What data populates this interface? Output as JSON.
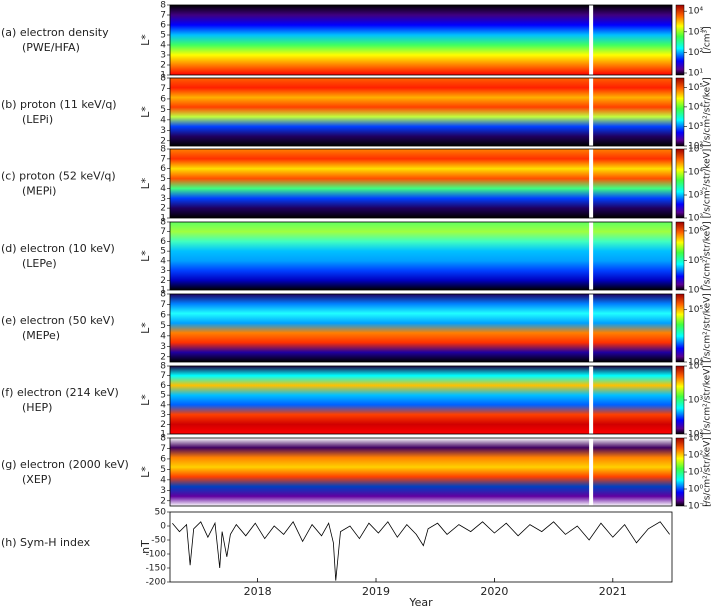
{
  "chart_data": [
    {
      "type": "spectrogram",
      "label": "(a) electron density",
      "sublabel": "(PWE/HFA)",
      "ylabel": "L*",
      "ylim": [
        1,
        8
      ],
      "yticks": [
        1,
        2,
        3,
        4,
        5,
        6,
        7,
        8
      ],
      "colormap": "jet",
      "colorbar": {
        "label": "[/cm³]",
        "lim": [
          8,
          20000
        ],
        "ticks": [
          {
            "value": 10,
            "label": "10¹"
          },
          {
            "value": 100,
            "label": "10²"
          },
          {
            "value": 1000,
            "label": "10³"
          },
          {
            "value": 10000,
            "label": "10⁴"
          }
        ]
      }
    },
    {
      "type": "spectrogram",
      "label": "(b) proton (11 keV/q)",
      "sublabel": "(LEPi)",
      "ylabel": "L*",
      "ylim": [
        1.5,
        8
      ],
      "yticks": [
        2,
        3,
        4,
        5,
        6,
        7,
        8
      ],
      "colormap": "jet",
      "colorbar": {
        "label": "[/s/cm²/str/keV]",
        "lim": [
          100,
          300000
        ],
        "ticks": [
          {
            "value": 100,
            "label": "10²"
          },
          {
            "value": 1000,
            "label": "10³"
          },
          {
            "value": 10000,
            "label": "10⁴"
          },
          {
            "value": 100000,
            "label": "10⁵"
          }
        ]
      }
    },
    {
      "type": "spectrogram",
      "label": "(c) proton (52 keV/q)",
      "sublabel": "(MEPi)",
      "ylabel": "L*",
      "ylim": [
        1,
        8
      ],
      "yticks": [
        1,
        2,
        3,
        4,
        5,
        6,
        7,
        8
      ],
      "colormap": "jet",
      "colorbar": {
        "label": "[/s/cm²/str/keV]",
        "lim": [
          100,
          100000
        ],
        "ticks": [
          {
            "value": 100,
            "label": "10²"
          },
          {
            "value": 1000,
            "label": "10³"
          },
          {
            "value": 10000,
            "label": "10⁴"
          },
          {
            "value": 100000,
            "label": "10⁵"
          }
        ]
      }
    },
    {
      "type": "spectrogram",
      "label": "(d) electron (10 keV)",
      "sublabel": "(LEPe)",
      "ylabel": "L*",
      "ylim": [
        1,
        8
      ],
      "yticks": [
        1,
        2,
        3,
        4,
        5,
        6,
        7,
        8
      ],
      "colormap": "jet",
      "colorbar": {
        "label": "[/s/cm²/str/keV]",
        "lim": [
          10000,
          2000000
        ],
        "ticks": [
          {
            "value": 10000,
            "label": "10⁴"
          },
          {
            "value": 100000,
            "label": "10⁵"
          },
          {
            "value": 1000000,
            "label": "10⁶"
          }
        ]
      }
    },
    {
      "type": "spectrogram",
      "label": "(e) electron (50 keV)",
      "sublabel": "(MEPe)",
      "ylabel": "L*",
      "ylim": [
        1.5,
        8
      ],
      "yticks": [
        2,
        3,
        4,
        5,
        6,
        7,
        8
      ],
      "colormap": "jet",
      "colorbar": {
        "label": "[/s/cm²/str/keV]",
        "lim": [
          10000,
          200000
        ],
        "ticks": [
          {
            "value": 10000,
            "label": "10⁴"
          },
          {
            "value": 100000,
            "label": "10⁵"
          }
        ]
      }
    },
    {
      "type": "spectrogram",
      "label": "(f) electron (214 keV)",
      "sublabel": "(HEP)",
      "ylabel": "L*",
      "ylim": [
        1,
        8
      ],
      "yticks": [
        1,
        2,
        3,
        4,
        5,
        6,
        7,
        8
      ],
      "colormap": "jet",
      "colorbar": {
        "label": "[/s/cm²/str/keV]",
        "lim": [
          100,
          10000
        ],
        "ticks": [
          {
            "value": 100,
            "label": "10²"
          },
          {
            "value": 1000,
            "label": "10³"
          },
          {
            "value": 10000,
            "label": "10⁴"
          }
        ]
      }
    },
    {
      "type": "spectrogram",
      "label": "(g) electron (2000 keV)",
      "sublabel": "(XEP)",
      "ylabel": "L*",
      "ylim": [
        1.5,
        8
      ],
      "yticks": [
        2,
        3,
        4,
        5,
        6,
        7,
        8
      ],
      "colormap": "jet",
      "colorbar": {
        "label": "[/s/cm²/str/keV]",
        "lim": [
          0.1,
          1000
        ],
        "ticks": [
          {
            "value": 0.1,
            "label": "10⁻¹"
          },
          {
            "value": 1,
            "label": "10⁰"
          },
          {
            "value": 10,
            "label": "10¹"
          },
          {
            "value": 100,
            "label": "10²"
          },
          {
            "value": 1000,
            "label": "10³"
          }
        ]
      }
    },
    {
      "type": "line",
      "label": "(h) Sym-H index",
      "ylabel": "nT",
      "xlabel": "Year",
      "color": "#000000",
      "xlim": [
        2017.26,
        2021.5
      ],
      "xticks": [
        2018,
        2019,
        2020,
        2021
      ],
      "ylim": [
        -200,
        50
      ],
      "yticks": [
        50,
        0,
        -50,
        -100,
        -150,
        -200
      ],
      "x": [
        2017.28,
        2017.34,
        2017.4,
        2017.43,
        2017.46,
        2017.52,
        2017.58,
        2017.64,
        2017.68,
        2017.7,
        2017.74,
        2017.77,
        2017.82,
        2017.9,
        2017.98,
        2018.06,
        2018.14,
        2018.22,
        2018.3,
        2018.38,
        2018.46,
        2018.54,
        2018.6,
        2018.64,
        2018.66,
        2018.7,
        2018.78,
        2018.86,
        2018.94,
        2019.02,
        2019.1,
        2019.18,
        2019.26,
        2019.34,
        2019.4,
        2019.44,
        2019.52,
        2019.6,
        2019.7,
        2019.8,
        2019.9,
        2020.0,
        2020.1,
        2020.2,
        2020.3,
        2020.4,
        2020.5,
        2020.6,
        2020.7,
        2020.8,
        2020.9,
        2021.0,
        2021.1,
        2021.2,
        2021.3,
        2021.4,
        2021.48
      ],
      "values": [
        10,
        -20,
        5,
        -140,
        -10,
        15,
        -40,
        10,
        -150,
        -20,
        -110,
        -30,
        5,
        -35,
        10,
        -45,
        0,
        -30,
        15,
        -55,
        5,
        -35,
        10,
        -60,
        -195,
        -20,
        0,
        -45,
        10,
        -25,
        15,
        -40,
        5,
        -30,
        -70,
        -10,
        10,
        -30,
        5,
        -20,
        15,
        -25,
        10,
        -35,
        5,
        -20,
        15,
        -30,
        0,
        -50,
        10,
        -40,
        5,
        -60,
        -10,
        15,
        -30
      ]
    }
  ]
}
